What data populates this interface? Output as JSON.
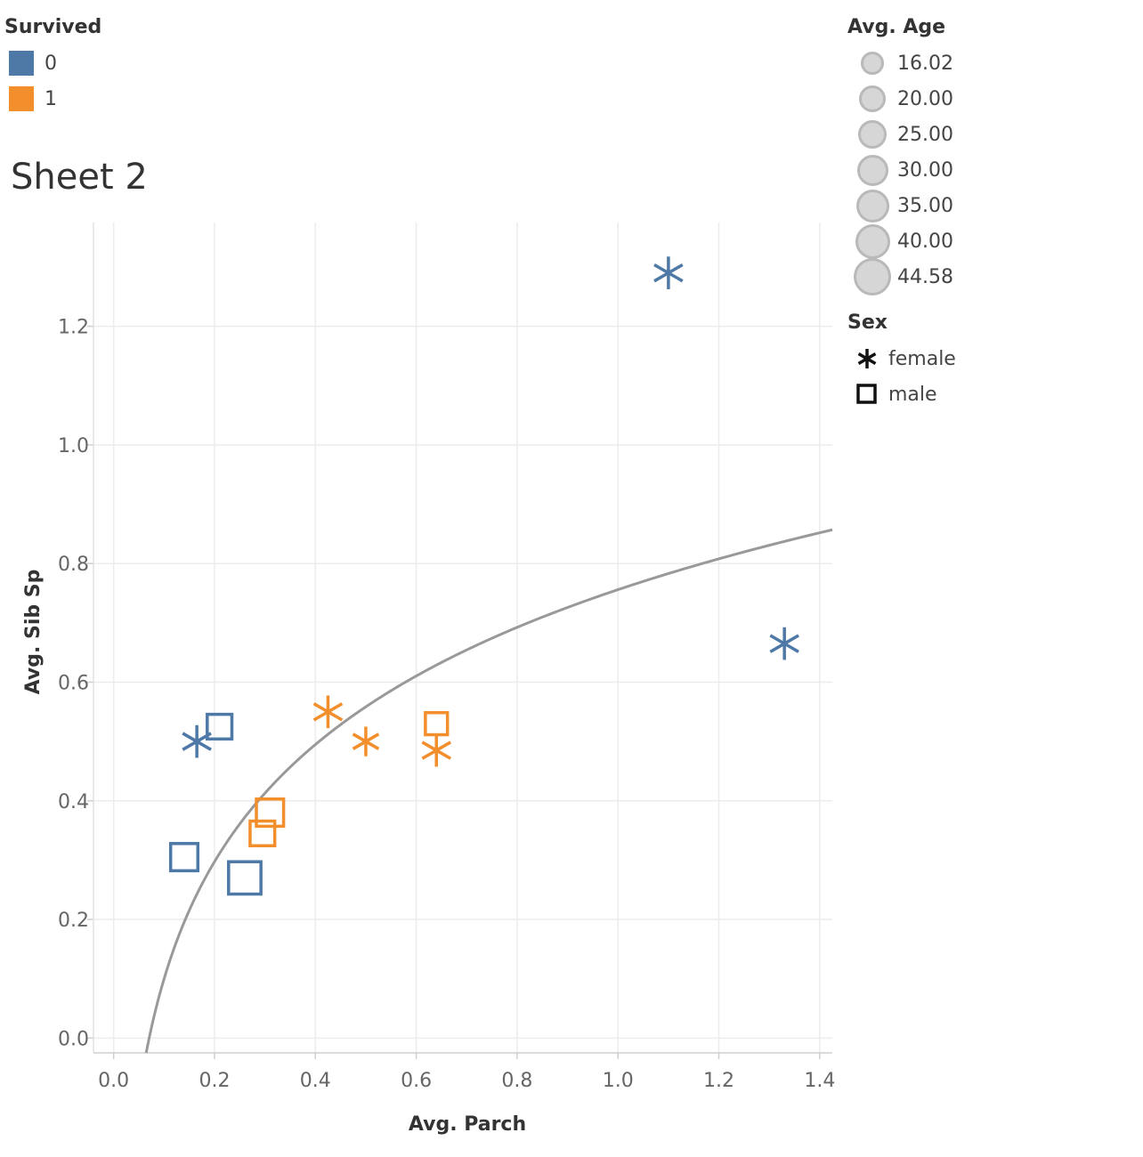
{
  "legends": {
    "survived": {
      "title": "Survived",
      "items": [
        {
          "label": "0",
          "color": "#4e79a7"
        },
        {
          "label": "1",
          "color": "#f28e2b"
        }
      ]
    },
    "avg_age": {
      "title": "Avg. Age",
      "items": [
        "16.02",
        "20.00",
        "25.00",
        "30.00",
        "35.00",
        "40.00",
        "44.58"
      ]
    },
    "sex": {
      "title": "Sex",
      "items": [
        {
          "label": "female",
          "shape": "asterisk"
        },
        {
          "label": "male",
          "shape": "square"
        }
      ]
    }
  },
  "sheet_title": "Sheet 2",
  "chart_data": {
    "type": "scatter",
    "xlabel": "Avg. Parch",
    "ylabel": "Avg. Sib Sp",
    "xlim": [
      -0.04,
      1.425
    ],
    "ylim": [
      -0.025,
      1.375
    ],
    "xticks": [
      "0.0",
      "0.2",
      "0.4",
      "0.6",
      "0.8",
      "1.0",
      "1.2",
      "1.4"
    ],
    "yticks": [
      "0.0",
      "0.2",
      "0.4",
      "0.6",
      "0.8",
      "1.0",
      "1.2"
    ],
    "grid": true,
    "trend_line": {
      "type": "logarithmic",
      "color": "#999999",
      "a": 0.756,
      "b": 0.285
    },
    "points": [
      {
        "x": 1.1,
        "y": 1.29,
        "survived": "0",
        "sex": "female",
        "age": 30
      },
      {
        "x": 1.33,
        "y": 0.665,
        "survived": "0",
        "sex": "female",
        "age": 30
      },
      {
        "x": 0.165,
        "y": 0.5,
        "survived": "0",
        "sex": "female",
        "age": 30
      },
      {
        "x": 0.21,
        "y": 0.525,
        "survived": "0",
        "sex": "male",
        "age": 25
      },
      {
        "x": 0.14,
        "y": 0.305,
        "survived": "0",
        "sex": "male",
        "age": 30
      },
      {
        "x": 0.26,
        "y": 0.27,
        "survived": "0",
        "sex": "male",
        "age": 40
      },
      {
        "x": 0.425,
        "y": 0.55,
        "survived": "1",
        "sex": "female",
        "age": 30
      },
      {
        "x": 0.5,
        "y": 0.5,
        "survived": "1",
        "sex": "female",
        "age": 25
      },
      {
        "x": 0.64,
        "y": 0.485,
        "survived": "1",
        "sex": "female",
        "age": 30
      },
      {
        "x": 0.64,
        "y": 0.53,
        "survived": "1",
        "sex": "male",
        "age": 20
      },
      {
        "x": 0.31,
        "y": 0.38,
        "survived": "1",
        "sex": "male",
        "age": 30
      },
      {
        "x": 0.295,
        "y": 0.345,
        "survived": "1",
        "sex": "male",
        "age": 25
      }
    ]
  }
}
